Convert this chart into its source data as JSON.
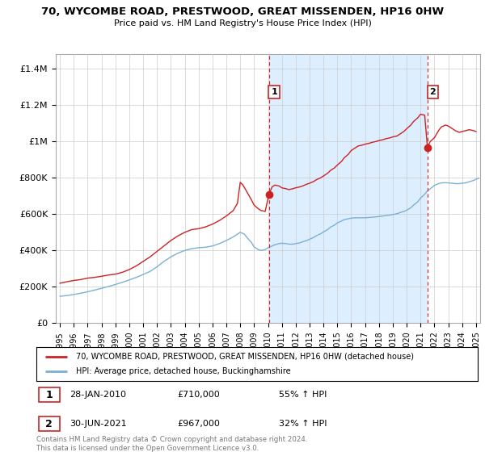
{
  "title": "70, WYCOMBE ROAD, PRESTWOOD, GREAT MISSENDEN, HP16 0HW",
  "subtitle": "Price paid vs. HM Land Registry's House Price Index (HPI)",
  "yticks_labels": [
    "£0",
    "£200K",
    "£400K",
    "£600K",
    "£800K",
    "£1M",
    "£1.2M",
    "£1.4M"
  ],
  "yticks_values": [
    0,
    200000,
    400000,
    600000,
    800000,
    1000000,
    1200000,
    1400000
  ],
  "ylim": [
    0,
    1480000
  ],
  "xlim_start": 1994.7,
  "xlim_end": 2025.3,
  "red_line_color": "#cc2222",
  "blue_line_color": "#7ab0d4",
  "shade_color": "#ddeeff",
  "marker1_date": 2010.07,
  "marker1_value": 710000,
  "marker2_date": 2021.5,
  "marker2_value": 967000,
  "dashed_line_color": "#cc2222",
  "legend_label1": "70, WYCOMBE ROAD, PRESTWOOD, GREAT MISSENDEN, HP16 0HW (detached house)",
  "legend_label2": "HPI: Average price, detached house, Buckinghamshire",
  "annotation1_label": "1",
  "annotation1_date": "28-JAN-2010",
  "annotation1_price": "£710,000",
  "annotation1_hpi": "55% ↑ HPI",
  "annotation2_label": "2",
  "annotation2_date": "30-JUN-2021",
  "annotation2_price": "£967,000",
  "annotation2_hpi": "32% ↑ HPI",
  "footer": "Contains HM Land Registry data © Crown copyright and database right 2024.\nThis data is licensed under the Open Government Licence v3.0.",
  "red_data": [
    [
      1995.0,
      220000
    ],
    [
      1995.5,
      228000
    ],
    [
      1996.0,
      235000
    ],
    [
      1996.5,
      240000
    ],
    [
      1997.0,
      248000
    ],
    [
      1997.5,
      252000
    ],
    [
      1998.0,
      258000
    ],
    [
      1998.5,
      265000
    ],
    [
      1999.0,
      270000
    ],
    [
      1999.5,
      280000
    ],
    [
      2000.0,
      295000
    ],
    [
      2000.5,
      315000
    ],
    [
      2001.0,
      340000
    ],
    [
      2001.5,
      365000
    ],
    [
      2002.0,
      395000
    ],
    [
      2002.5,
      425000
    ],
    [
      2003.0,
      455000
    ],
    [
      2003.5,
      480000
    ],
    [
      2004.0,
      500000
    ],
    [
      2004.5,
      515000
    ],
    [
      2005.0,
      520000
    ],
    [
      2005.5,
      530000
    ],
    [
      2006.0,
      545000
    ],
    [
      2006.5,
      565000
    ],
    [
      2007.0,
      590000
    ],
    [
      2007.5,
      620000
    ],
    [
      2007.8,
      660000
    ],
    [
      2008.0,
      775000
    ],
    [
      2008.2,
      760000
    ],
    [
      2008.5,
      720000
    ],
    [
      2008.8,
      680000
    ],
    [
      2009.0,
      650000
    ],
    [
      2009.3,
      630000
    ],
    [
      2009.5,
      620000
    ],
    [
      2009.8,
      615000
    ],
    [
      2010.07,
      710000
    ],
    [
      2010.3,
      750000
    ],
    [
      2010.5,
      760000
    ],
    [
      2010.8,
      755000
    ],
    [
      2011.0,
      745000
    ],
    [
      2011.3,
      740000
    ],
    [
      2011.5,
      735000
    ],
    [
      2011.8,
      740000
    ],
    [
      2012.0,
      745000
    ],
    [
      2012.3,
      750000
    ],
    [
      2012.5,
      755000
    ],
    [
      2012.8,
      765000
    ],
    [
      2013.0,
      770000
    ],
    [
      2013.3,
      780000
    ],
    [
      2013.5,
      790000
    ],
    [
      2013.8,
      800000
    ],
    [
      2014.0,
      810000
    ],
    [
      2014.3,
      825000
    ],
    [
      2014.5,
      840000
    ],
    [
      2014.8,
      855000
    ],
    [
      2015.0,
      870000
    ],
    [
      2015.3,
      890000
    ],
    [
      2015.5,
      910000
    ],
    [
      2015.8,
      930000
    ],
    [
      2016.0,
      950000
    ],
    [
      2016.3,
      965000
    ],
    [
      2016.5,
      975000
    ],
    [
      2016.8,
      980000
    ],
    [
      2017.0,
      985000
    ],
    [
      2017.3,
      990000
    ],
    [
      2017.5,
      995000
    ],
    [
      2017.8,
      1000000
    ],
    [
      2018.0,
      1005000
    ],
    [
      2018.3,
      1010000
    ],
    [
      2018.5,
      1015000
    ],
    [
      2018.8,
      1020000
    ],
    [
      2019.0,
      1025000
    ],
    [
      2019.3,
      1030000
    ],
    [
      2019.5,
      1040000
    ],
    [
      2019.8,
      1055000
    ],
    [
      2020.0,
      1070000
    ],
    [
      2020.3,
      1090000
    ],
    [
      2020.5,
      1110000
    ],
    [
      2020.8,
      1130000
    ],
    [
      2021.0,
      1150000
    ],
    [
      2021.3,
      1145000
    ],
    [
      2021.5,
      967000
    ],
    [
      2021.7,
      1000000
    ],
    [
      2022.0,
      1020000
    ],
    [
      2022.3,
      1060000
    ],
    [
      2022.5,
      1080000
    ],
    [
      2022.8,
      1090000
    ],
    [
      2023.0,
      1085000
    ],
    [
      2023.3,
      1070000
    ],
    [
      2023.5,
      1060000
    ],
    [
      2023.8,
      1050000
    ],
    [
      2024.0,
      1055000
    ],
    [
      2024.3,
      1060000
    ],
    [
      2024.5,
      1065000
    ],
    [
      2024.8,
      1060000
    ],
    [
      2025.0,
      1055000
    ]
  ],
  "blue_data": [
    [
      1995.0,
      148000
    ],
    [
      1995.5,
      152000
    ],
    [
      1996.0,
      158000
    ],
    [
      1996.5,
      165000
    ],
    [
      1997.0,
      173000
    ],
    [
      1997.5,
      182000
    ],
    [
      1998.0,
      192000
    ],
    [
      1998.5,
      202000
    ],
    [
      1999.0,
      213000
    ],
    [
      1999.5,
      225000
    ],
    [
      2000.0,
      238000
    ],
    [
      2000.5,
      252000
    ],
    [
      2001.0,
      268000
    ],
    [
      2001.5,
      285000
    ],
    [
      2002.0,
      310000
    ],
    [
      2002.5,
      340000
    ],
    [
      2003.0,
      365000
    ],
    [
      2003.5,
      385000
    ],
    [
      2004.0,
      400000
    ],
    [
      2004.5,
      410000
    ],
    [
      2005.0,
      415000
    ],
    [
      2005.5,
      418000
    ],
    [
      2006.0,
      425000
    ],
    [
      2006.5,
      438000
    ],
    [
      2007.0,
      455000
    ],
    [
      2007.5,
      475000
    ],
    [
      2008.0,
      500000
    ],
    [
      2008.3,
      490000
    ],
    [
      2008.5,
      470000
    ],
    [
      2008.8,
      445000
    ],
    [
      2009.0,
      420000
    ],
    [
      2009.3,
      405000
    ],
    [
      2009.5,
      400000
    ],
    [
      2009.8,
      405000
    ],
    [
      2010.0,
      415000
    ],
    [
      2010.3,
      425000
    ],
    [
      2010.5,
      432000
    ],
    [
      2010.8,
      438000
    ],
    [
      2011.0,
      440000
    ],
    [
      2011.3,
      438000
    ],
    [
      2011.5,
      435000
    ],
    [
      2011.8,
      435000
    ],
    [
      2012.0,
      438000
    ],
    [
      2012.3,
      442000
    ],
    [
      2012.5,
      448000
    ],
    [
      2012.8,
      455000
    ],
    [
      2013.0,
      462000
    ],
    [
      2013.3,
      472000
    ],
    [
      2013.5,
      482000
    ],
    [
      2013.8,
      492000
    ],
    [
      2014.0,
      502000
    ],
    [
      2014.3,
      515000
    ],
    [
      2014.5,
      528000
    ],
    [
      2014.8,
      540000
    ],
    [
      2015.0,
      552000
    ],
    [
      2015.3,
      562000
    ],
    [
      2015.5,
      570000
    ],
    [
      2015.8,
      575000
    ],
    [
      2016.0,
      578000
    ],
    [
      2016.3,
      580000
    ],
    [
      2016.5,
      580000
    ],
    [
      2016.8,
      580000
    ],
    [
      2017.0,
      580000
    ],
    [
      2017.3,
      582000
    ],
    [
      2017.5,
      583000
    ],
    [
      2017.8,
      585000
    ],
    [
      2018.0,
      587000
    ],
    [
      2018.3,
      590000
    ],
    [
      2018.5,
      592000
    ],
    [
      2018.8,
      595000
    ],
    [
      2019.0,
      598000
    ],
    [
      2019.3,
      602000
    ],
    [
      2019.5,
      608000
    ],
    [
      2019.8,
      615000
    ],
    [
      2020.0,
      622000
    ],
    [
      2020.3,
      635000
    ],
    [
      2020.5,
      650000
    ],
    [
      2020.8,
      668000
    ],
    [
      2021.0,
      688000
    ],
    [
      2021.3,
      710000
    ],
    [
      2021.5,
      728000
    ],
    [
      2021.8,
      745000
    ],
    [
      2022.0,
      758000
    ],
    [
      2022.3,
      768000
    ],
    [
      2022.5,
      772000
    ],
    [
      2022.8,
      773000
    ],
    [
      2023.0,
      772000
    ],
    [
      2023.3,
      770000
    ],
    [
      2023.5,
      768000
    ],
    [
      2023.8,
      768000
    ],
    [
      2024.0,
      770000
    ],
    [
      2024.3,
      773000
    ],
    [
      2024.5,
      778000
    ],
    [
      2024.8,
      785000
    ],
    [
      2025.0,
      792000
    ],
    [
      2025.2,
      798000
    ]
  ]
}
